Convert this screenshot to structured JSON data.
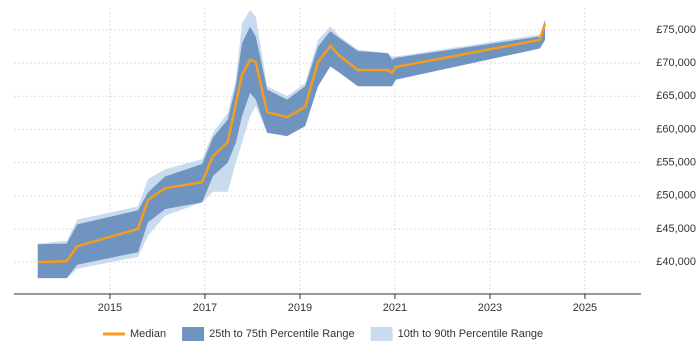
{
  "chart_data": {
    "type": "percentile-area",
    "x": [
      2013.48,
      2014.09,
      2014.31,
      2015.59,
      2015.8,
      2016.16,
      2016.94,
      2017.17,
      2017.48,
      2017.65,
      2017.78,
      2017.95,
      2018.07,
      2018.31,
      2018.73,
      2019.11,
      2019.38,
      2019.64,
      2019.84,
      2020.22,
      2020.85,
      2020.94,
      2021.02,
      2024.05,
      2024.16
    ],
    "series": [
      {
        "name": "Median",
        "color": "#f39c1f",
        "values": [
          40000,
          40150,
          42400,
          45000,
          49350,
          51150,
          52050,
          56000,
          58100,
          63800,
          68200,
          70500,
          70150,
          62600,
          61850,
          63400,
          70150,
          72600,
          71050,
          68950,
          68950,
          68500,
          69400,
          73500,
          76000
        ]
      },
      {
        "name": "25th to 75th Percentile Range",
        "color": "#7094c0",
        "lower": [
          37600,
          37600,
          39600,
          41500,
          46000,
          48000,
          49000,
          53000,
          55000,
          58000,
          62000,
          65500,
          64500,
          59500,
          59000,
          60500,
          66500,
          69500,
          68500,
          66500,
          66500,
          66500,
          67500,
          72200,
          73500
        ],
        "upper": [
          42700,
          42800,
          45700,
          47800,
          50500,
          52900,
          54800,
          58800,
          61500,
          66500,
          73000,
          75500,
          74000,
          66000,
          64500,
          66500,
          72500,
          74800,
          73700,
          71800,
          71500,
          70500,
          70800,
          74000,
          76500
        ]
      },
      {
        "name": "10th to 90th Percentile Range",
        "color": "#c9dbee",
        "lower": [
          37600,
          37600,
          39000,
          40800,
          44000,
          47000,
          49000,
          50600,
          50600,
          55000,
          58000,
          62000,
          63500,
          59500,
          59000,
          60500,
          66500,
          69500,
          68500,
          66500,
          66500,
          66500,
          67500,
          72200,
          73500
        ],
        "upper": [
          42800,
          43200,
          46400,
          48400,
          52500,
          54000,
          55500,
          59500,
          62500,
          67500,
          76000,
          78000,
          77000,
          66500,
          65000,
          67000,
          73500,
          75500,
          74000,
          72000,
          71500,
          71000,
          71000,
          74300,
          76500
        ]
      }
    ],
    "xlim": [
      2012.98,
      2026.18
    ],
    "ylim": [
      35200,
      78300
    ],
    "xticks": [
      2015,
      2017,
      2019,
      2021,
      2023,
      2025
    ],
    "yticks": [
      {
        "value": 40000,
        "label": "£40,000"
      },
      {
        "value": 45000,
        "label": "£45,000"
      },
      {
        "value": 50000,
        "label": "£50,000"
      },
      {
        "value": 55000,
        "label": "£55,000"
      },
      {
        "value": 60000,
        "label": "£60,000"
      },
      {
        "value": 65000,
        "label": "£65,000"
      },
      {
        "value": 70000,
        "label": "£70,000"
      },
      {
        "value": 75000,
        "label": "£75,000"
      }
    ],
    "grid": true
  }
}
